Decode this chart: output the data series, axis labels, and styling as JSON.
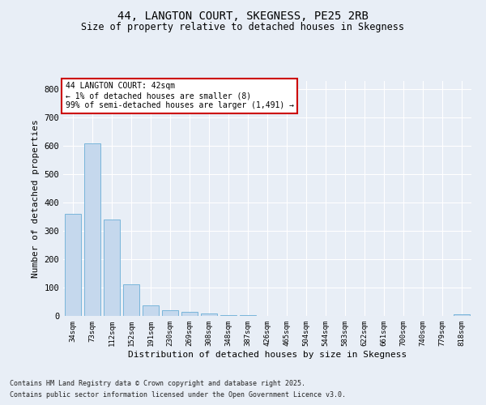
{
  "title": "44, LANGTON COURT, SKEGNESS, PE25 2RB",
  "subtitle": "Size of property relative to detached houses in Skegness",
  "xlabel": "Distribution of detached houses by size in Skegness",
  "ylabel": "Number of detached properties",
  "bar_color": "#c5d8ed",
  "bar_edgecolor": "#6aaed6",
  "bg_color": "#e8eef6",
  "fig_bg_color": "#e8eef6",
  "grid_color": "#ffffff",
  "annotation_text": "44 LANGTON COURT: 42sqm\n← 1% of detached houses are smaller (8)\n99% of semi-detached houses are larger (1,491) →",
  "categories": [
    "34sqm",
    "73sqm",
    "112sqm",
    "152sqm",
    "191sqm",
    "230sqm",
    "269sqm",
    "308sqm",
    "348sqm",
    "387sqm",
    "426sqm",
    "465sqm",
    "504sqm",
    "544sqm",
    "583sqm",
    "622sqm",
    "661sqm",
    "700sqm",
    "740sqm",
    "779sqm",
    "818sqm"
  ],
  "values": [
    360,
    610,
    340,
    113,
    37,
    20,
    14,
    10,
    3,
    3,
    0,
    0,
    0,
    0,
    0,
    0,
    0,
    0,
    0,
    0,
    5
  ],
  "ylim": [
    0,
    830
  ],
  "yticks": [
    0,
    100,
    200,
    300,
    400,
    500,
    600,
    700,
    800
  ],
  "footnote1": "Contains HM Land Registry data © Crown copyright and database right 2025.",
  "footnote2": "Contains public sector information licensed under the Open Government Licence v3.0."
}
